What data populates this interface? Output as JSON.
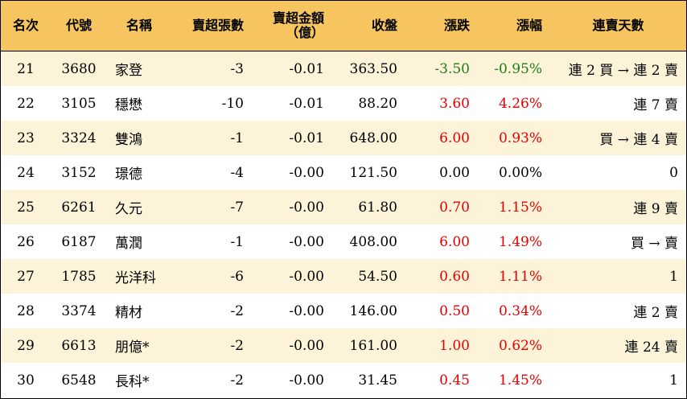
{
  "headers": {
    "rank": "名次",
    "code": "代號",
    "name": "名稱",
    "sell_lots": "賣超張數",
    "sell_amount_line1": "賣超金額",
    "sell_amount_line2": "（億）",
    "close": "收盤",
    "change": "漲跌",
    "pct": "漲幅",
    "streak": "連賣天數"
  },
  "colors": {
    "header_bg": "#f6c55f",
    "odd_row_bg": "#fcf3d8",
    "even_row_bg": "#ffffff",
    "up": "#e50000",
    "down": "#1a7f1a"
  },
  "rows": [
    {
      "rank": "21",
      "code": "3680",
      "name": "家登",
      "sell_lots": "-3",
      "sell_amount": "-0.01",
      "close": "363.50",
      "change": "-3.50",
      "pct": "-0.95%",
      "streak": "連 2 買 → 連 2 賣",
      "trend": "down"
    },
    {
      "rank": "22",
      "code": "3105",
      "name": "穩懋",
      "sell_lots": "-10",
      "sell_amount": "-0.01",
      "close": "88.20",
      "change": "3.60",
      "pct": "4.26%",
      "streak": "連 7 賣",
      "trend": "up"
    },
    {
      "rank": "23",
      "code": "3324",
      "name": "雙鴻",
      "sell_lots": "-1",
      "sell_amount": "-0.01",
      "close": "648.00",
      "change": "6.00",
      "pct": "0.93%",
      "streak": "買 → 連 4 賣",
      "trend": "up"
    },
    {
      "rank": "24",
      "code": "3152",
      "name": "璟德",
      "sell_lots": "-4",
      "sell_amount": "-0.00",
      "close": "121.50",
      "change": "0.00",
      "pct": "0.00%",
      "streak": "0",
      "trend": "flat"
    },
    {
      "rank": "25",
      "code": "6261",
      "name": "久元",
      "sell_lots": "-7",
      "sell_amount": "-0.00",
      "close": "61.80",
      "change": "0.70",
      "pct": "1.15%",
      "streak": "連 9 賣",
      "trend": "up"
    },
    {
      "rank": "26",
      "code": "6187",
      "name": "萬潤",
      "sell_lots": "-1",
      "sell_amount": "-0.00",
      "close": "408.00",
      "change": "6.00",
      "pct": "1.49%",
      "streak": "買 → 賣",
      "trend": "up"
    },
    {
      "rank": "27",
      "code": "1785",
      "name": "光洋科",
      "sell_lots": "-6",
      "sell_amount": "-0.00",
      "close": "54.50",
      "change": "0.60",
      "pct": "1.11%",
      "streak": "1",
      "trend": "up"
    },
    {
      "rank": "28",
      "code": "3374",
      "name": "精材",
      "sell_lots": "-2",
      "sell_amount": "-0.00",
      "close": "146.00",
      "change": "0.50",
      "pct": "0.34%",
      "streak": "連 2 賣",
      "trend": "up"
    },
    {
      "rank": "29",
      "code": "6613",
      "name": "朋億*",
      "sell_lots": "-2",
      "sell_amount": "-0.00",
      "close": "161.00",
      "change": "1.00",
      "pct": "0.62%",
      "streak": "連 24 賣",
      "trend": "up"
    },
    {
      "rank": "30",
      "code": "6548",
      "name": "長科*",
      "sell_lots": "-2",
      "sell_amount": "-0.00",
      "close": "31.45",
      "change": "0.45",
      "pct": "1.45%",
      "streak": "1",
      "trend": "up"
    }
  ]
}
